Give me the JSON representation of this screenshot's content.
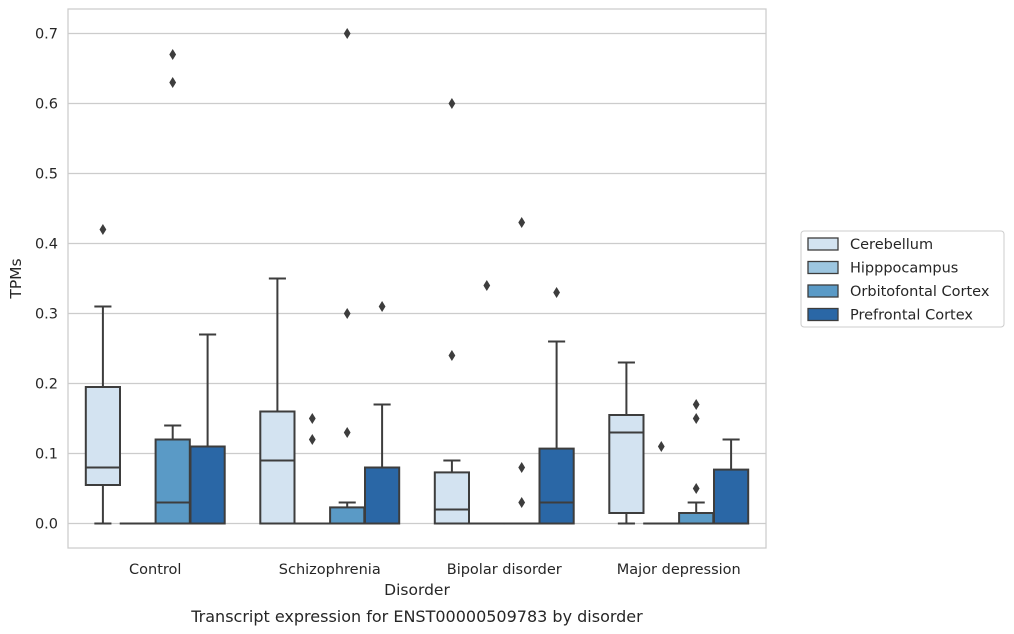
{
  "chart_data": {
    "type": "box",
    "caption": "Transcript expression for ENST00000509783 by disorder",
    "xlabel": "Disorder",
    "ylabel": "TPMs",
    "ylim": [
      -0.035,
      0.735
    ],
    "yticks": [
      "0.0",
      "0.1",
      "0.2",
      "0.3",
      "0.4",
      "0.5",
      "0.6",
      "0.7"
    ],
    "ytick_values": [
      0,
      0.1,
      0.2,
      0.3,
      0.4,
      0.5,
      0.6,
      0.7
    ],
    "grid": "horizontal",
    "legend_position": "right",
    "categories": [
      "Control",
      "Schizophrenia",
      "Bipolar disorder",
      "Major depression"
    ],
    "series": [
      {
        "name": "Cerebellum",
        "color": "#d3e3f1",
        "boxes": [
          {
            "whislo": 0.0,
            "q1": 0.055,
            "med": 0.08,
            "q3": 0.195,
            "whishi": 0.31,
            "fliers": [
              0.42
            ]
          },
          {
            "whislo": 0.0,
            "q1": 0.0,
            "med": 0.09,
            "q3": 0.16,
            "whishi": 0.35,
            "fliers": []
          },
          {
            "whislo": 0.0,
            "q1": 0.0,
            "med": 0.02,
            "q3": 0.073,
            "whishi": 0.09,
            "fliers": [
              0.24,
              0.6
            ]
          },
          {
            "whislo": 0.0,
            "q1": 0.015,
            "med": 0.13,
            "q3": 0.155,
            "whishi": 0.23,
            "fliers": []
          }
        ]
      },
      {
        "name": "Hipppocampus",
        "color": "#9dc6e0",
        "boxes": [
          {
            "whislo": 0.0,
            "q1": 0.0,
            "med": 0.0,
            "q3": 0.0,
            "whishi": 0.0,
            "fliers": []
          },
          {
            "whislo": 0.0,
            "q1": 0.0,
            "med": 0.0,
            "q3": 0.0,
            "whishi": 0.0,
            "fliers": [
              0.12,
              0.15
            ]
          },
          {
            "whislo": 0.0,
            "q1": 0.0,
            "med": 0.0,
            "q3": 0.0,
            "whishi": 0.0,
            "fliers": [
              0.34
            ]
          },
          {
            "whislo": 0.0,
            "q1": 0.0,
            "med": 0.0,
            "q3": 0.0,
            "whishi": 0.0,
            "fliers": [
              0.11
            ]
          }
        ]
      },
      {
        "name": "Orbitofontal Cortex",
        "color": "#5a9ac6",
        "boxes": [
          {
            "whislo": 0.0,
            "q1": 0.0,
            "med": 0.03,
            "q3": 0.12,
            "whishi": 0.14,
            "fliers": [
              0.63,
              0.67
            ]
          },
          {
            "whislo": 0.0,
            "q1": 0.0,
            "med": 0.0,
            "q3": 0.023,
            "whishi": 0.03,
            "fliers": [
              0.13,
              0.3,
              0.7
            ]
          },
          {
            "whislo": 0.0,
            "q1": 0.0,
            "med": 0.0,
            "q3": 0.0,
            "whishi": 0.0,
            "fliers": [
              0.03,
              0.08,
              0.43
            ]
          },
          {
            "whislo": 0.0,
            "q1": 0.0,
            "med": 0.0,
            "q3": 0.015,
            "whishi": 0.03,
            "fliers": [
              0.05,
              0.15,
              0.17
            ]
          }
        ]
      },
      {
        "name": "Prefrontal Cortex",
        "color": "#2a67a6",
        "boxes": [
          {
            "whislo": 0.0,
            "q1": 0.0,
            "med": 0.0,
            "q3": 0.11,
            "whishi": 0.27,
            "fliers": []
          },
          {
            "whislo": 0.0,
            "q1": 0.0,
            "med": 0.0,
            "q3": 0.08,
            "whishi": 0.17,
            "fliers": [
              0.31
            ]
          },
          {
            "whislo": 0.0,
            "q1": 0.0,
            "med": 0.03,
            "q3": 0.107,
            "whishi": 0.26,
            "fliers": [
              0.33
            ]
          },
          {
            "whislo": 0.0,
            "q1": 0.0,
            "med": 0.0,
            "q3": 0.077,
            "whishi": 0.12,
            "fliers": []
          }
        ]
      }
    ]
  }
}
